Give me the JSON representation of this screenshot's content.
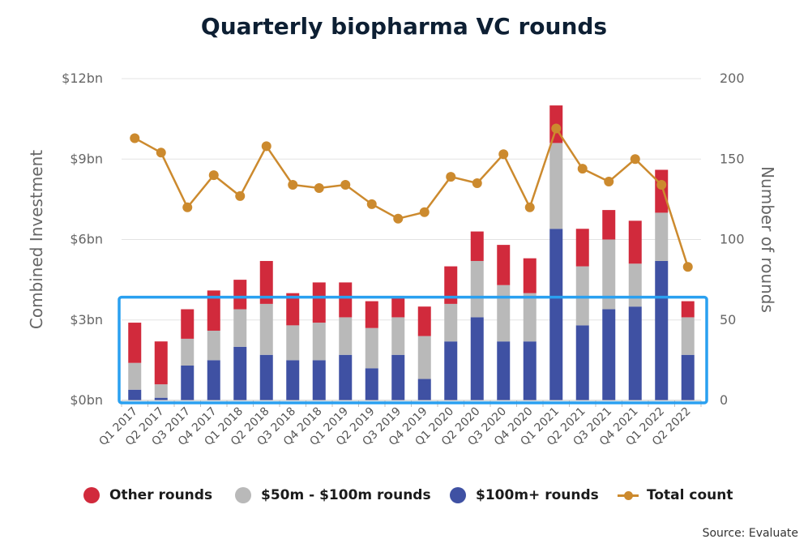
{
  "chart_data": {
    "type": "bar",
    "stacked": true,
    "title": "Quarterly biopharma VC rounds",
    "ylabel": "Combined Investment",
    "y2label": "Number of rounds",
    "ylim": [
      0,
      12
    ],
    "y2lim": [
      0,
      200
    ],
    "yticks": [
      "$0bn",
      "$3bn",
      "$6bn",
      "$9bn",
      "$12bn"
    ],
    "y2ticks": [
      "0",
      "50",
      "100",
      "150",
      "200"
    ],
    "grid": true,
    "legend_position": "bottom",
    "categories": [
      "Q1 2017",
      "Q2 2017",
      "Q3 2017",
      "Q4 2017",
      "Q1 2018",
      "Q2 2018",
      "Q3 2018",
      "Q4 2018",
      "Q1 2019",
      "Q2 2019",
      "Q3 2019",
      "Q4 2019",
      "Q1 2020",
      "Q2 2020",
      "Q3 2020",
      "Q4 2020",
      "Q1 2021",
      "Q2 2021",
      "Q3 2021",
      "Q4 2021",
      "Q1 2022",
      "Q2 2022"
    ],
    "series": [
      {
        "name": "$100m+ rounds",
        "type": "bar",
        "axis": "left",
        "color": "#3f51a3",
        "values": [
          0.4,
          0.1,
          1.3,
          1.5,
          2.0,
          1.7,
          1.5,
          1.5,
          1.7,
          1.2,
          1.7,
          0.8,
          2.2,
          3.1,
          2.2,
          2.2,
          6.4,
          2.8,
          3.4,
          3.5,
          5.2,
          1.7
        ]
      },
      {
        "name": "$50m - $100m rounds",
        "type": "bar",
        "axis": "left",
        "color": "#b9b9b9",
        "values": [
          1.0,
          0.5,
          1.0,
          1.1,
          1.4,
          1.9,
          1.3,
          1.4,
          1.4,
          1.5,
          1.4,
          1.6,
          1.4,
          2.1,
          2.1,
          1.8,
          3.2,
          2.2,
          2.6,
          1.6,
          1.8,
          1.4
        ]
      },
      {
        "name": "Other rounds",
        "type": "bar",
        "axis": "left",
        "color": "#d12a3c",
        "values": [
          1.5,
          1.6,
          1.1,
          1.5,
          1.1,
          1.6,
          1.2,
          1.5,
          1.3,
          1.0,
          0.8,
          1.1,
          1.4,
          1.1,
          1.5,
          1.3,
          1.4,
          1.4,
          1.1,
          1.6,
          1.6,
          0.6
        ]
      },
      {
        "name": "Total count",
        "type": "line",
        "axis": "right",
        "color": "#cc8a2e",
        "values": [
          163,
          154,
          120,
          140,
          127,
          158,
          134,
          132,
          134,
          122,
          113,
          117,
          139,
          135,
          153,
          120,
          169,
          144,
          136,
          150,
          134,
          83
        ]
      }
    ],
    "annotation": {
      "type": "highlight-box",
      "color": "#2aa0f0",
      "y_range": [
        0,
        3.85
      ]
    }
  },
  "legend": {
    "other": "Other rounds",
    "mid": "$50m - $100m rounds",
    "large": "$100m+ rounds",
    "count": "Total count"
  },
  "source": "Source: Evaluate"
}
